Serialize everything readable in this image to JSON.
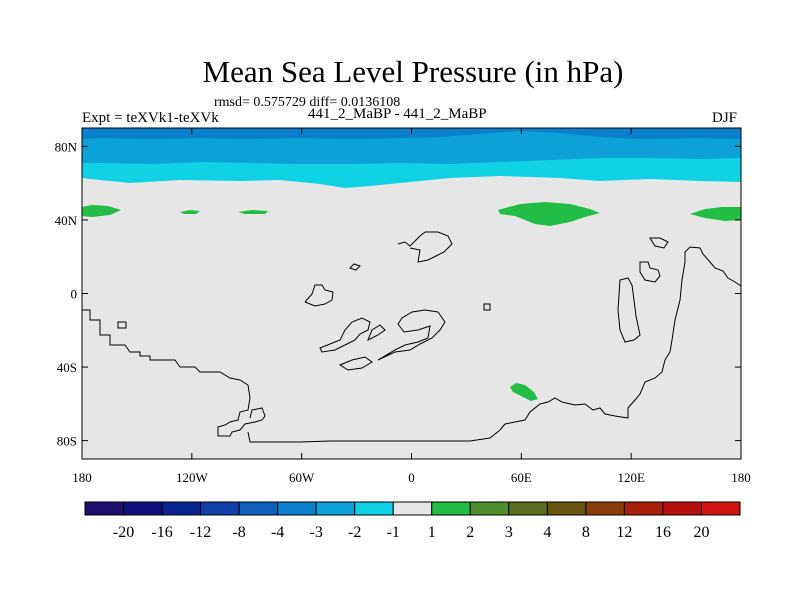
{
  "title": "Mean Sea Level Pressure (in hPa)",
  "stats": "rmsd= 0.575729 diff= 0.0136108",
  "expt": "Expt = teXVk1-teXVk",
  "center_label": "441_2_MaBP - 441_2_MaBP",
  "season": "DJF",
  "axes": {
    "y_ticks": [
      "80N",
      "40N",
      "0",
      "40S",
      "80S"
    ],
    "x_ticks": [
      "180",
      "120W",
      "60W",
      "0",
      "60E",
      "120E",
      "180"
    ]
  },
  "colorbar": {
    "labels": [
      "-20",
      "-16",
      "-12",
      "-8",
      "-4",
      "-3",
      "-2",
      "-1",
      "1",
      "2",
      "3",
      "4",
      "8",
      "12",
      "16",
      "20"
    ],
    "colors": [
      "#1d0f6e",
      "#10107e",
      "#0a2390",
      "#1040a8",
      "#1060bb",
      "#0b7fcb",
      "#0ca2d8",
      "#0fd3e4",
      "#e6e6e6",
      "#23bd45",
      "#4f8f2b",
      "#5a7020",
      "#6a5510",
      "#8a3c0c",
      "#a51f0a",
      "#b70f0b",
      "#d11412"
    ]
  },
  "colors": {
    "background_field": "#e6e6e6",
    "band_dark": "#0b7fcb",
    "band_mid": "#0ca2d8",
    "band_light": "#0fd3e4",
    "positive_patch": "#23bd45",
    "coastline": "#000000"
  },
  "chart_data": {
    "type": "heatmap",
    "title": "Mean Sea Level Pressure (in hPa)",
    "projection": "cylindrical-equidistant",
    "lon_range": [
      -180,
      180
    ],
    "lat_range": [
      -90,
      90
    ],
    "legend": "bottom",
    "levels": [
      -20,
      -16,
      -12,
      -8,
      -4,
      -3,
      -2,
      -1,
      1,
      2,
      3,
      4,
      8,
      12,
      16,
      20
    ],
    "features": [
      {
        "name": "arctic-band-minus-3-to-4",
        "lat_range": [
          78,
          90
        ],
        "lon_range": [
          -180,
          180
        ]
      },
      {
        "name": "arctic-band-minus-2-to-3",
        "lat_range": [
          66,
          78
        ],
        "lon_range": [
          -180,
          180
        ]
      },
      {
        "name": "arctic-band-minus-1-to-2",
        "lat_range": [
          60,
          68
        ],
        "lon_range": [
          -180,
          180
        ]
      },
      {
        "name": "positive-patch-north-pacific",
        "center": [
          -174,
          46
        ],
        "range": "1-2"
      },
      {
        "name": "positive-patch-north-america",
        "center": [
          -125,
          45
        ],
        "range": "1-2"
      },
      {
        "name": "positive-patch-north-atlantic",
        "center": [
          -83,
          45
        ],
        "range": "1-2"
      },
      {
        "name": "positive-patch-central-asia",
        "center": [
          80,
          43
        ],
        "range": "1-2"
      },
      {
        "name": "positive-patch-east-asia",
        "center": [
          165,
          45
        ],
        "range": "1-2"
      },
      {
        "name": "positive-patch-southern-ocean",
        "center": [
          62,
          -54
        ],
        "range": "1-2"
      }
    ]
  }
}
